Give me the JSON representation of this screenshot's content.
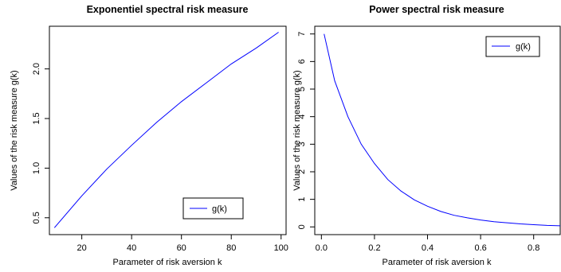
{
  "chart_data": [
    {
      "type": "line",
      "title": "Exponentiel spectral risk measure",
      "xlabel": "Parameter of risk aversion k",
      "ylabel": "Values of the risk measure g(k)",
      "xlim": [
        7,
        102
      ],
      "ylim": [
        0.33,
        2.43
      ],
      "x_ticks": [
        20,
        40,
        60,
        80,
        100
      ],
      "y_ticks": [
        0.5,
        1.0,
        1.5,
        2.0
      ],
      "x_tick_labels": [
        "20",
        "40",
        "60",
        "80",
        "100"
      ],
      "y_tick_labels": [
        "0.5",
        "1.0",
        "1.5",
        "2.0"
      ],
      "grid": false,
      "legend_position": "bottom-right",
      "series": [
        {
          "name": "g(k)",
          "color": "#0000ff",
          "x": [
            9,
            20,
            30,
            40,
            50,
            60,
            70,
            80,
            90,
            99
          ],
          "y": [
            0.4,
            0.72,
            0.99,
            1.23,
            1.46,
            1.67,
            1.86,
            2.05,
            2.21,
            2.37
          ]
        }
      ]
    },
    {
      "type": "line",
      "title": "Power spectral risk measure",
      "xlabel": "Parameter of risk aversion k",
      "ylabel": "Values of the risk measure  g(k)",
      "xlim": [
        -0.025,
        0.9
      ],
      "ylim": [
        -0.28,
        7.28
      ],
      "x_ticks": [
        0.0,
        0.2,
        0.4,
        0.6,
        0.8
      ],
      "y_ticks": [
        0,
        1,
        2,
        3,
        4,
        5,
        6,
        7
      ],
      "x_tick_labels": [
        "0.0",
        "0.2",
        "0.4",
        "0.6",
        "0.8"
      ],
      "y_tick_labels": [
        "0",
        "1",
        "2",
        "3",
        "4",
        "5",
        "6",
        "7"
      ],
      "grid": false,
      "legend_position": "top-right",
      "series": [
        {
          "name": "g(k)",
          "color": "#0000ff",
          "x": [
            0.01,
            0.05,
            0.1,
            0.15,
            0.2,
            0.25,
            0.3,
            0.35,
            0.4,
            0.45,
            0.5,
            0.55,
            0.6,
            0.65,
            0.7,
            0.75,
            0.8,
            0.85,
            0.9
          ],
          "y": [
            7.0,
            5.3,
            4.0,
            3.0,
            2.3,
            1.72,
            1.3,
            0.98,
            0.75,
            0.56,
            0.42,
            0.33,
            0.25,
            0.19,
            0.15,
            0.11,
            0.08,
            0.055,
            0.04
          ]
        }
      ]
    }
  ]
}
